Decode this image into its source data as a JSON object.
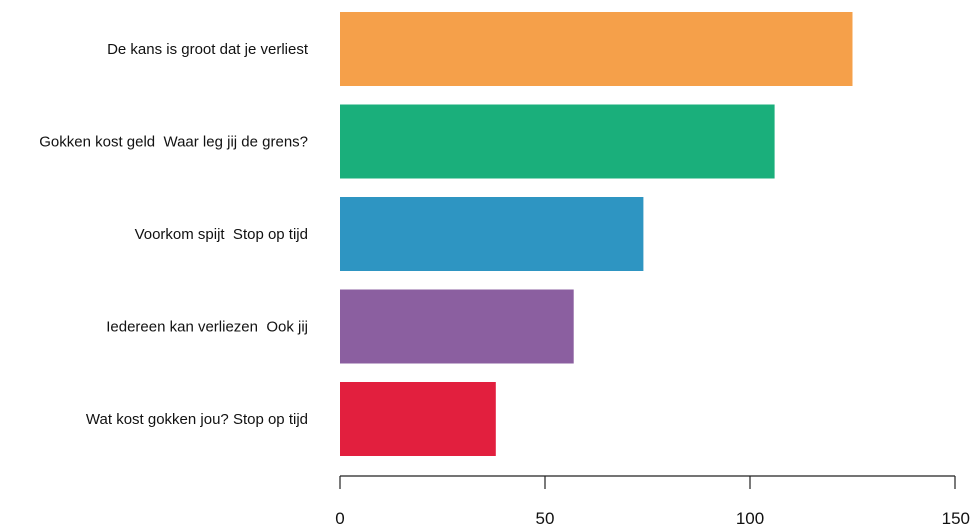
{
  "chart_data": {
    "type": "bar",
    "orientation": "horizontal",
    "categories": [
      "De kans is groot dat je verliest",
      "Gokken kost geld  Waar leg jij de grens?",
      "Voorkom spijt  Stop op tijd",
      "Iedereen kan verliezen  Ook jij",
      "Wat kost gokken jou? Stop op tijd"
    ],
    "values": [
      125,
      106,
      74,
      57,
      38
    ],
    "colors": [
      "#F5A04A",
      "#1AAF7B",
      "#2E95C2",
      "#8B5FA0",
      "#E21F3E"
    ],
    "xlim": [
      0,
      150
    ],
    "xticks": [
      0,
      50,
      100,
      150
    ],
    "title": "",
    "xlabel": "",
    "ylabel": "",
    "grid": false,
    "legend": "none"
  }
}
